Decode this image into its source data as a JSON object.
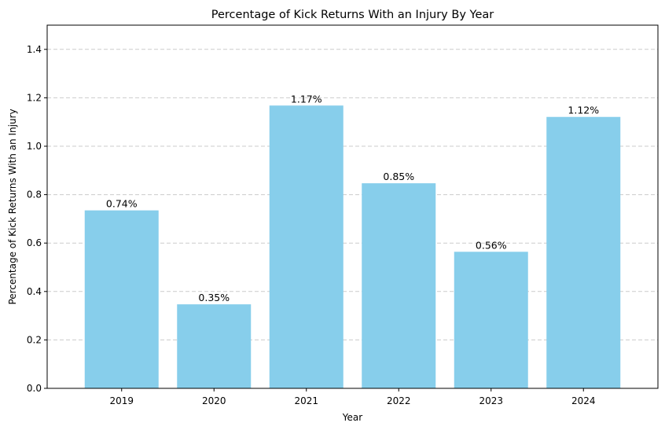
{
  "chart_data": {
    "type": "bar",
    "title": "Percentage of Kick Returns With an Injury By Year",
    "xlabel": "Year",
    "ylabel": "Percentage of Kick Returns With an Injury",
    "categories": [
      "2019",
      "2020",
      "2021",
      "2022",
      "2023",
      "2024"
    ],
    "values": [
      0.735,
      0.347,
      1.168,
      0.847,
      0.564,
      1.121
    ],
    "value_labels": [
      "0.74%",
      "0.35%",
      "1.17%",
      "0.85%",
      "0.56%",
      "1.12%"
    ],
    "ylim": [
      0,
      1.5
    ],
    "yticks": [
      0.0,
      0.2,
      0.4,
      0.6,
      0.8,
      1.0,
      1.2,
      1.4
    ],
    "ytick_labels": [
      "0.0",
      "0.2",
      "0.4",
      "0.6",
      "0.8",
      "1.0",
      "1.2",
      "1.4"
    ],
    "grid": "y-axis dashed",
    "bar_color": "#87CEEB",
    "grid_color": "#cccccc"
  }
}
